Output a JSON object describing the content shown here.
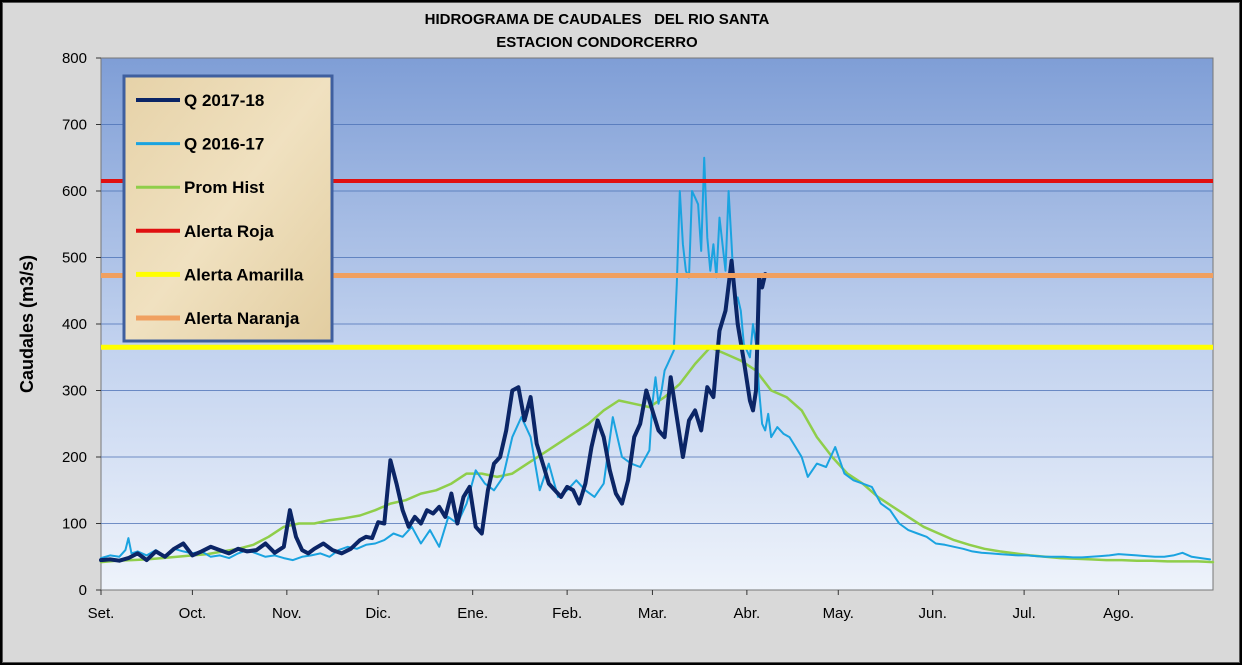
{
  "chart_data": {
    "type": "line",
    "title": "HIDROGRAMA DE CAUDALES   DEL RIO SANTA",
    "subtitle": "ESTACION CONDORCERRO",
    "ylabel": "Caudales (m3/s)",
    "xlabel": "",
    "ylim": [
      0,
      800
    ],
    "yticks": [
      0,
      100,
      200,
      300,
      400,
      500,
      600,
      700,
      800
    ],
    "xlim": [
      0,
      365
    ],
    "month_labels": [
      "Set.",
      "Oct.",
      "Nov.",
      "Dic.",
      "Ene.",
      "Feb.",
      "Mar.",
      "Abr.",
      "May.",
      "Jun.",
      "Jul.",
      "Ago."
    ],
    "month_starts": [
      0,
      30,
      61,
      91,
      122,
      153,
      181,
      212,
      242,
      273,
      303,
      334
    ],
    "grid": true,
    "legend_position": "top-left",
    "series": [
      {
        "name": "Q 2017-18",
        "color": "#0b2566",
        "width": 4,
        "x": [
          0,
          3,
          6,
          9,
          12,
          15,
          18,
          21,
          24,
          27,
          30,
          33,
          36,
          39,
          42,
          45,
          48,
          51,
          54,
          57,
          60,
          62,
          64,
          66,
          68,
          70,
          73,
          76,
          79,
          82,
          85,
          87,
          89,
          91,
          93,
          95,
          97,
          99,
          101,
          103,
          105,
          107,
          109,
          111,
          113,
          115,
          117,
          119,
          121,
          123,
          125,
          127,
          129,
          131,
          133,
          135,
          137,
          139,
          141,
          143,
          145,
          147,
          149,
          151,
          153,
          155,
          157,
          159,
          161,
          163,
          165,
          167,
          169,
          171,
          173,
          175,
          177,
          179,
          181,
          183,
          185,
          187,
          189,
          191,
          193,
          195,
          197,
          199,
          201,
          203,
          205,
          207,
          209,
          211,
          213,
          214,
          215,
          216,
          217,
          218
        ],
        "values": [
          45,
          46,
          44,
          48,
          55,
          45,
          58,
          50,
          62,
          70,
          52,
          58,
          65,
          60,
          55,
          62,
          58,
          60,
          70,
          56,
          65,
          120,
          80,
          60,
          55,
          62,
          70,
          60,
          55,
          62,
          75,
          80,
          78,
          102,
          100,
          195,
          160,
          120,
          95,
          110,
          100,
          120,
          115,
          125,
          110,
          145,
          100,
          140,
          155,
          95,
          85,
          150,
          190,
          200,
          240,
          300,
          305,
          255,
          290,
          220,
          190,
          160,
          150,
          140,
          155,
          150,
          130,
          160,
          215,
          255,
          230,
          180,
          145,
          130,
          165,
          230,
          250,
          300,
          270,
          240,
          230,
          320,
          260,
          200,
          255,
          270,
          240,
          305,
          290,
          390,
          420,
          495,
          400,
          345,
          285,
          270,
          300,
          470,
          455,
          475
        ]
      },
      {
        "name": "Q 2016-17",
        "color": "#1aa3e0",
        "width": 2,
        "x": [
          0,
          3,
          6,
          8,
          9,
          10,
          12,
          15,
          18,
          21,
          24,
          27,
          30,
          33,
          36,
          39,
          42,
          45,
          48,
          51,
          54,
          57,
          60,
          63,
          66,
          69,
          72,
          75,
          78,
          81,
          84,
          87,
          90,
          93,
          96,
          99,
          102,
          105,
          108,
          111,
          114,
          117,
          120,
          123,
          126,
          129,
          132,
          135,
          138,
          141,
          144,
          147,
          150,
          153,
          156,
          159,
          162,
          165,
          168,
          171,
          174,
          177,
          180,
          181,
          182,
          183,
          184,
          185,
          186,
          187,
          188,
          189,
          190,
          191,
          192,
          193,
          194,
          195,
          196,
          197,
          198,
          199,
          200,
          201,
          202,
          203,
          204,
          205,
          206,
          207,
          208,
          209,
          210,
          211,
          212,
          213,
          214,
          215,
          216,
          217,
          218,
          219,
          220,
          222,
          224,
          226,
          228,
          230,
          232,
          235,
          238,
          241,
          244,
          247,
          250,
          253,
          256,
          259,
          262,
          265,
          268,
          271,
          274,
          277,
          280,
          283,
          286,
          289,
          292,
          295,
          298,
          301,
          304,
          307,
          310,
          313,
          316,
          319,
          322,
          325,
          328,
          331,
          334,
          337,
          340,
          343,
          346,
          349,
          352,
          355,
          358,
          361,
          364
        ],
        "values": [
          48,
          52,
          50,
          60,
          78,
          55,
          58,
          52,
          60,
          50,
          62,
          58,
          55,
          58,
          50,
          52,
          48,
          55,
          60,
          55,
          50,
          52,
          48,
          45,
          50,
          52,
          55,
          50,
          60,
          65,
          62,
          68,
          70,
          75,
          85,
          80,
          95,
          70,
          90,
          65,
          110,
          100,
          130,
          180,
          160,
          150,
          170,
          230,
          260,
          230,
          150,
          190,
          140,
          150,
          165,
          150,
          140,
          160,
          260,
          200,
          190,
          185,
          210,
          280,
          320,
          280,
          300,
          330,
          340,
          350,
          360,
          460,
          600,
          520,
          480,
          470,
          600,
          590,
          580,
          510,
          650,
          530,
          480,
          520,
          470,
          560,
          520,
          480,
          600,
          520,
          430,
          440,
          420,
          370,
          360,
          350,
          400,
          370,
          300,
          250,
          240,
          265,
          230,
          245,
          235,
          230,
          215,
          200,
          170,
          190,
          185,
          215,
          175,
          165,
          160,
          155,
          130,
          120,
          100,
          90,
          85,
          80,
          70,
          68,
          65,
          62,
          58,
          56,
          55,
          54,
          53,
          52,
          52,
          51,
          50,
          50,
          50,
          49,
          49,
          50,
          51,
          52,
          54,
          53,
          52,
          51,
          50,
          50,
          52,
          56,
          50,
          48,
          46
        ]
      },
      {
        "name": "Prom Hist",
        "color": "#8fce4a",
        "width": 2.5,
        "x": [
          0,
          5,
          10,
          15,
          20,
          25,
          30,
          35,
          40,
          45,
          50,
          55,
          60,
          65,
          70,
          75,
          80,
          85,
          90,
          95,
          100,
          105,
          110,
          115,
          120,
          125,
          130,
          135,
          140,
          145,
          150,
          155,
          160,
          165,
          170,
          175,
          180,
          185,
          190,
          195,
          200,
          205,
          210,
          215,
          220,
          225,
          230,
          235,
          240,
          245,
          250,
          255,
          260,
          265,
          270,
          275,
          280,
          285,
          290,
          295,
          300,
          305,
          310,
          315,
          320,
          325,
          330,
          335,
          340,
          345,
          350,
          355,
          360,
          365
        ],
        "values": [
          42,
          44,
          45,
          46,
          48,
          50,
          52,
          54,
          58,
          62,
          68,
          80,
          95,
          100,
          100,
          105,
          108,
          112,
          120,
          130,
          135,
          145,
          150,
          160,
          175,
          175,
          170,
          175,
          190,
          205,
          220,
          235,
          250,
          270,
          285,
          280,
          275,
          290,
          310,
          340,
          365,
          355,
          345,
          330,
          300,
          290,
          270,
          230,
          200,
          175,
          160,
          140,
          125,
          110,
          95,
          85,
          75,
          68,
          62,
          58,
          55,
          52,
          50,
          48,
          47,
          46,
          45,
          45,
          44,
          44,
          43,
          43,
          43,
          42
        ]
      },
      {
        "name": "Alerta Roja",
        "color": "#e01010",
        "width": 4,
        "constant": 615
      },
      {
        "name": "Alerta Amarilla",
        "color": "#ffff00",
        "width": 5,
        "constant": 365
      },
      {
        "name": "Alerta Naranja",
        "color": "#f0a060",
        "width": 5,
        "constant": 473
      }
    ]
  }
}
